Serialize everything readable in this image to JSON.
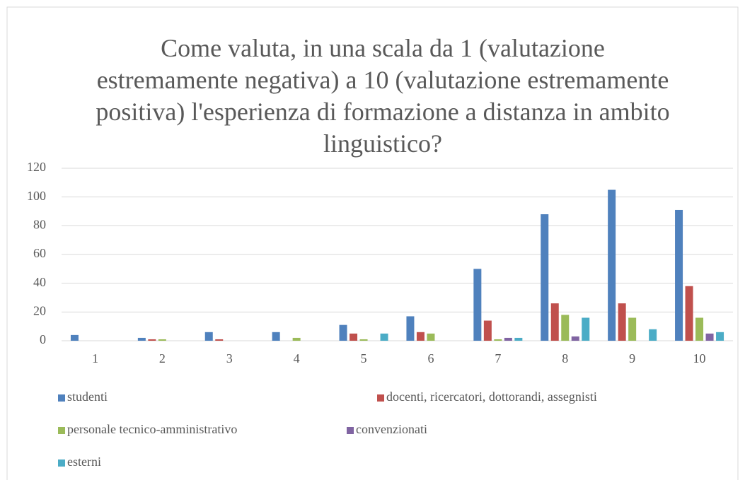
{
  "chart_data": {
    "type": "bar",
    "title": "Come valuta, in una scala da 1 (valutazione estremamente negativa) a 10 (valutazione estremamente positiva) l'esperienza di formazione a distanza in ambito linguistico?",
    "categories": [
      "1",
      "2",
      "3",
      "4",
      "5",
      "6",
      "7",
      "8",
      "9",
      "10"
    ],
    "series": [
      {
        "name": "studenti",
        "color": "#4f81bd",
        "values": [
          4,
          2,
          6,
          6,
          11,
          17,
          50,
          88,
          105,
          91
        ]
      },
      {
        "name": "docenti, ricercatori, dottorandi, assegnisti",
        "color": "#c0504d",
        "values": [
          0,
          1,
          1,
          0,
          5,
          6,
          14,
          26,
          26,
          38
        ]
      },
      {
        "name": "personale tecnico-amministrativo",
        "color": "#9bbb59",
        "values": [
          0,
          1,
          0,
          2,
          1,
          5,
          1,
          18,
          16,
          16
        ]
      },
      {
        "name": "convenzionati",
        "color": "#8064a2",
        "values": [
          0,
          0,
          0,
          0,
          0,
          0,
          2,
          3,
          0,
          5
        ]
      },
      {
        "name": "esterni",
        "color": "#4bacc6",
        "values": [
          0,
          0,
          0,
          0,
          5,
          0,
          2,
          16,
          8,
          6
        ]
      }
    ],
    "ylim": [
      0,
      120
    ],
    "yticks": [
      0,
      20,
      40,
      60,
      80,
      100,
      120
    ],
    "grid": true,
    "legend": "bottom"
  }
}
